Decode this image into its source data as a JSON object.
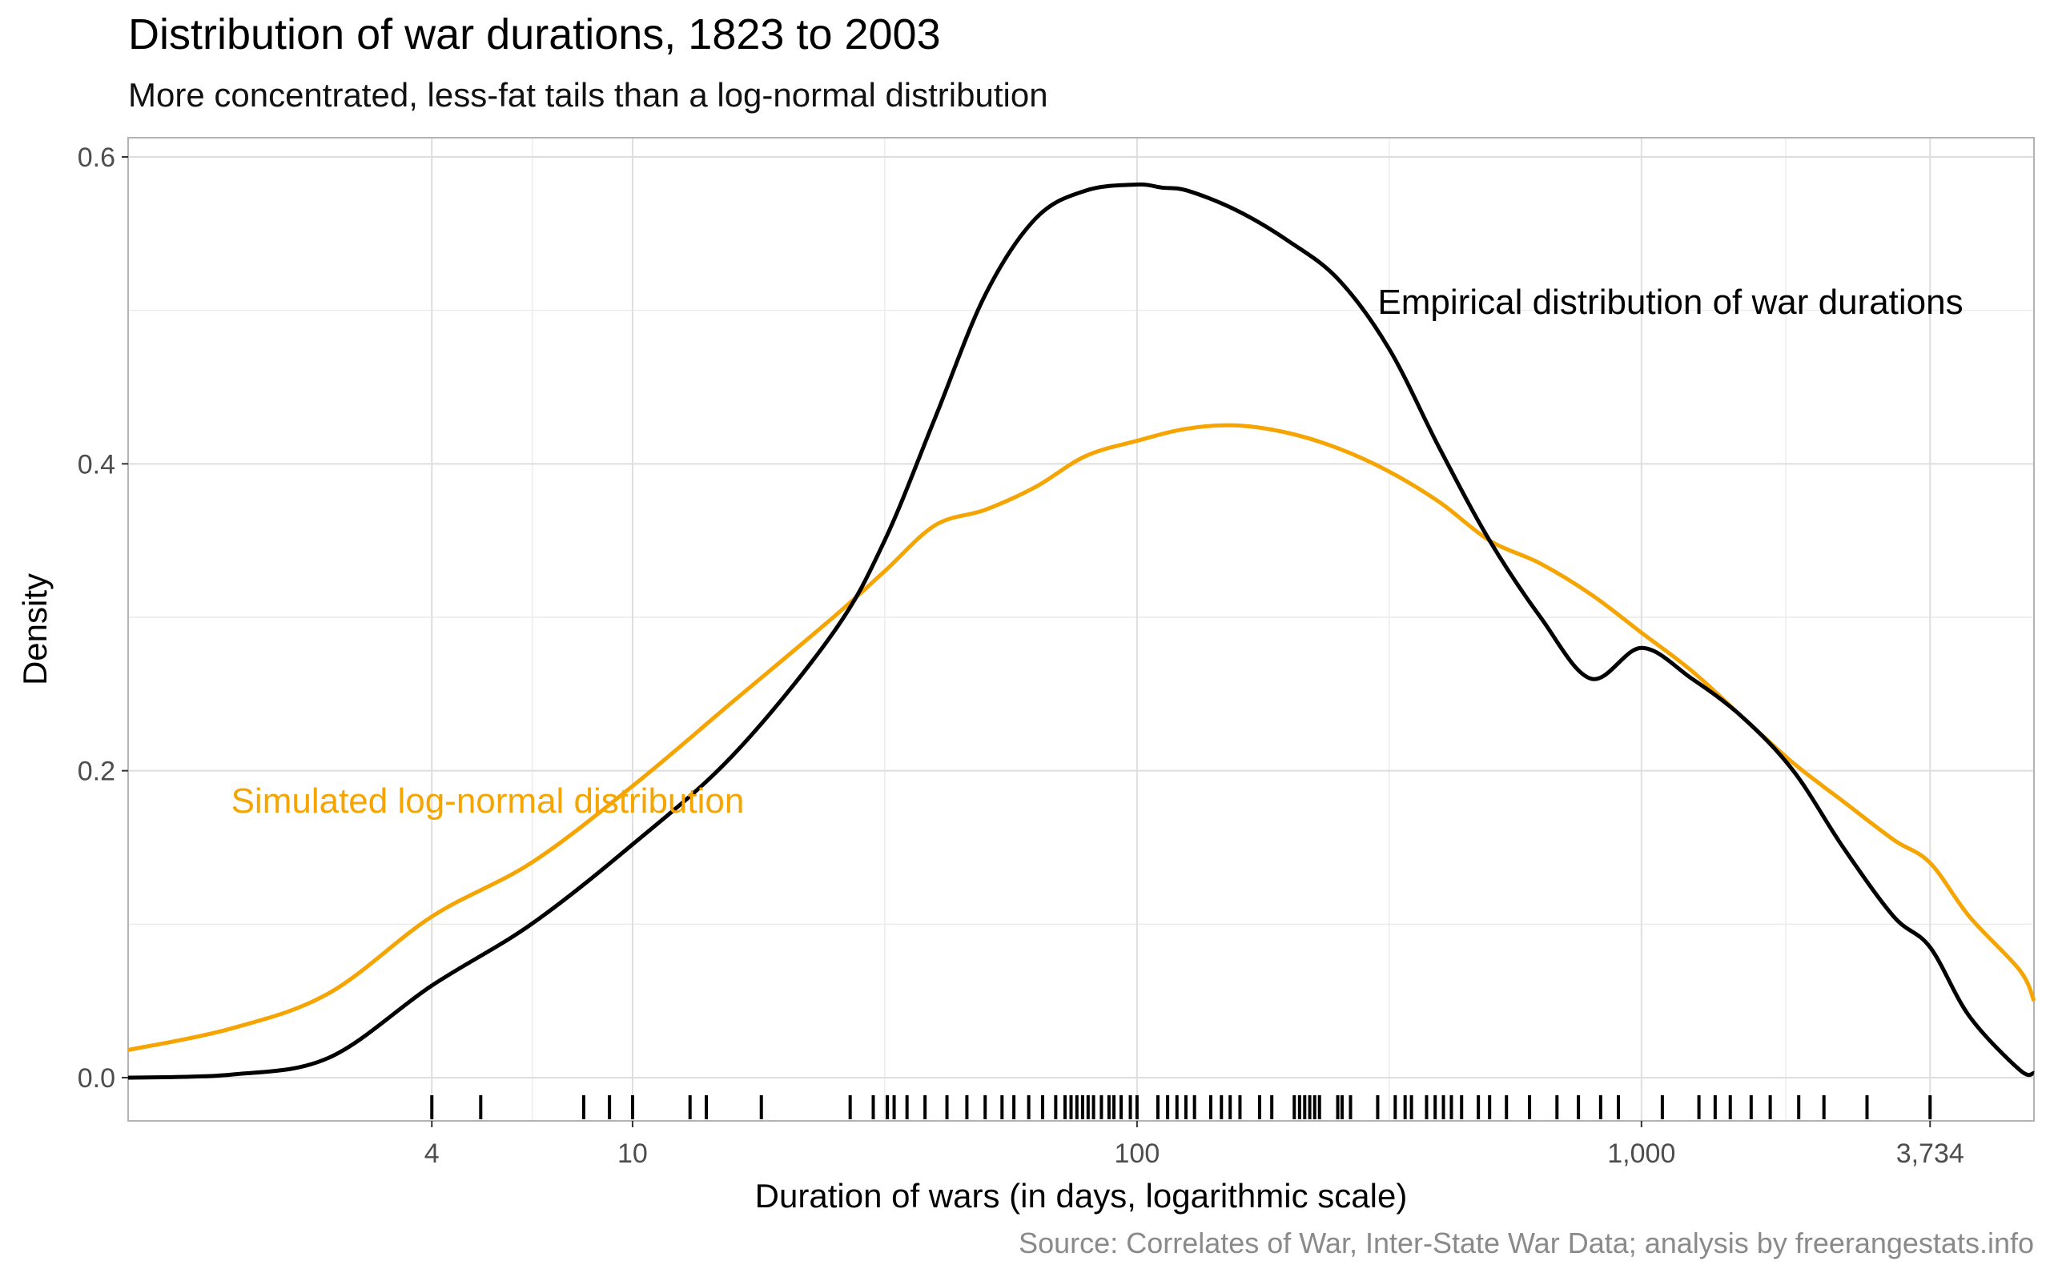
{
  "chart_data": {
    "type": "line",
    "title": "Distribution of war durations, 1823 to 2003",
    "subtitle": "More concentrated, less-fat tails than a log-normal distribution",
    "caption": "Source: Correlates of War, Inter-State War Data; analysis by freerangestats.info",
    "xlabel": "Duration of wars (in days, logarithmic scale)",
    "ylabel": "Density",
    "x_scale": "log10",
    "xlim": [
      1,
      6000
    ],
    "ylim": [
      0,
      0.6
    ],
    "x_ticks": [
      {
        "value": 4,
        "label": "4"
      },
      {
        "value": 10,
        "label": "10"
      },
      {
        "value": 100,
        "label": "100"
      },
      {
        "value": 1000,
        "label": "1,000"
      },
      {
        "value": 3734,
        "label": "3,734"
      }
    ],
    "y_ticks": [
      {
        "value": 0,
        "label": "0.0"
      },
      {
        "value": 0.2,
        "label": "0.2"
      },
      {
        "value": 0.4,
        "label": "0.4"
      },
      {
        "value": 0.6,
        "label": "0.6"
      }
    ],
    "grid": true,
    "colors": {
      "empirical": "#000000",
      "simulated": "#f5a400",
      "grid": "#dedede",
      "panel_border": "#b3b3b3"
    },
    "series": [
      {
        "name": "Empirical distribution of war durations",
        "color": "#000000",
        "x": [
          1,
          1.6,
          2.5,
          4,
          6.3,
          10,
          15.8,
          25,
          31.6,
          39.8,
          50,
          63,
          79,
          100,
          112,
          126,
          158,
          200,
          251,
          316,
          398,
          500,
          631,
          794,
          1000,
          1259,
          1585,
          2000,
          2512,
          3162,
          3734,
          4467,
          5623,
          6000
        ],
        "values": [
          0.0,
          0.002,
          0.013,
          0.06,
          0.1,
          0.152,
          0.21,
          0.29,
          0.35,
          0.43,
          0.51,
          0.56,
          0.578,
          0.582,
          0.58,
          0.578,
          0.565,
          0.545,
          0.52,
          0.475,
          0.41,
          0.35,
          0.3,
          0.26,
          0.28,
          0.26,
          0.235,
          0.2,
          0.15,
          0.105,
          0.085,
          0.04,
          0.005,
          0.003
        ]
      },
      {
        "name": "Simulated log-normal distribution",
        "color": "#f5a400",
        "x": [
          1,
          1.6,
          2.5,
          4,
          6.3,
          10,
          15.8,
          25,
          31.6,
          39.8,
          50,
          63,
          79,
          100,
          126,
          158,
          200,
          251,
          316,
          398,
          500,
          631,
          794,
          1000,
          1259,
          1585,
          2000,
          2512,
          3162,
          3734,
          4467,
          5623,
          6000
        ],
        "values": [
          0.018,
          0.032,
          0.055,
          0.105,
          0.14,
          0.19,
          0.245,
          0.3,
          0.33,
          0.36,
          0.37,
          0.385,
          0.405,
          0.415,
          0.423,
          0.425,
          0.42,
          0.41,
          0.395,
          0.375,
          0.35,
          0.335,
          0.315,
          0.29,
          0.265,
          0.235,
          0.205,
          0.18,
          0.155,
          0.14,
          0.105,
          0.07,
          0.05
        ]
      }
    ],
    "annotations": [
      {
        "text": "Empirical distribution of war durations",
        "x": 300,
        "y": 0.505,
        "color": "#000000",
        "anchor": "start"
      },
      {
        "text": "Simulated log-normal distribution",
        "x": 1.6,
        "y": 0.18,
        "color": "#f5a400",
        "anchor": "start"
      }
    ],
    "rug": [
      4,
      5,
      8,
      9,
      10,
      13,
      14,
      18,
      27,
      30,
      32,
      33,
      35,
      38,
      42,
      46,
      50,
      54,
      57,
      61,
      65,
      69,
      72,
      74,
      76,
      78,
      80,
      82,
      85,
      88,
      90,
      93,
      97,
      100,
      110,
      115,
      120,
      125,
      130,
      140,
      147,
      153,
      160,
      175,
      185,
      205,
      210,
      215,
      220,
      225,
      230,
      250,
      255,
      265,
      300,
      325,
      340,
      350,
      375,
      390,
      405,
      420,
      440,
      475,
      500,
      540,
      600,
      680,
      750,
      830,
      900,
      1100,
      1300,
      1400,
      1500,
      1650,
      1800,
      2050,
      2300,
      2800,
      3734
    ]
  }
}
